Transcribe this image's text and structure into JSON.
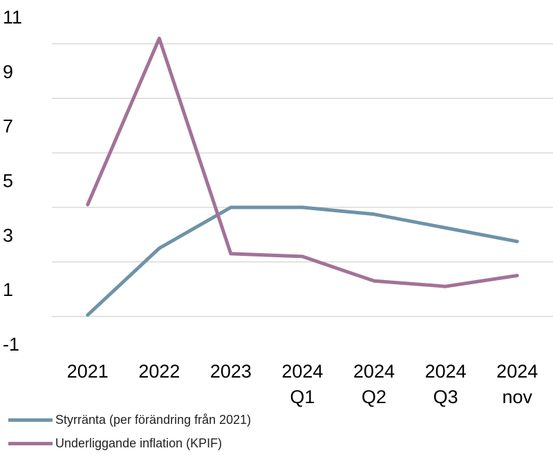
{
  "chart_data": {
    "type": "line",
    "categories": [
      [
        "2021"
      ],
      [
        "2022"
      ],
      [
        "2023"
      ],
      [
        "2024",
        "Q1"
      ],
      [
        "2024",
        "Q2"
      ],
      [
        "2024",
        "Q3"
      ],
      [
        "2024",
        "nov"
      ]
    ],
    "series": [
      {
        "name": "Styrränta (per förändring från 2021)",
        "color": "#6E93A8",
        "values": [
          0.05,
          2.5,
          4.0,
          4.0,
          3.75,
          3.25,
          2.75
        ]
      },
      {
        "name": "Underliggande inflation (KPIF)",
        "color": "#A27298",
        "values": [
          4.1,
          10.2,
          2.3,
          2.2,
          1.3,
          1.1,
          1.5
        ]
      }
    ],
    "y_ticks": [
      -1,
      1,
      3,
      5,
      7,
      9,
      11
    ],
    "y_gridlines": [
      0,
      2,
      4,
      6,
      8,
      10,
      12
    ],
    "ylim": [
      -1,
      11
    ],
    "grid": true,
    "legend_position": "bottom-left"
  }
}
